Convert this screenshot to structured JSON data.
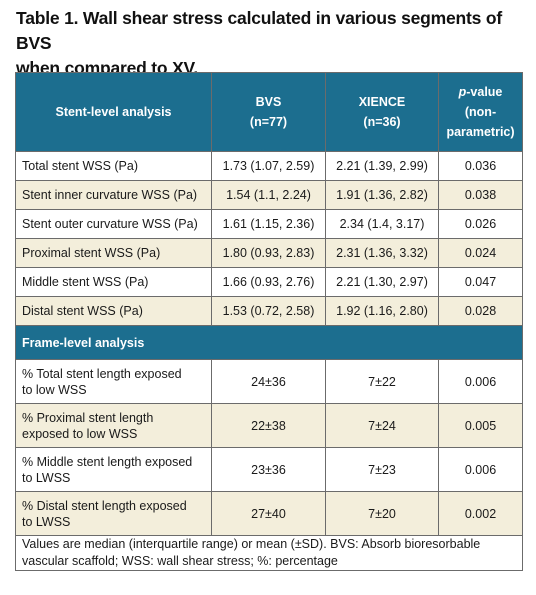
{
  "caption": {
    "line1": "Table 1. Wall shear stress calculated in various segments of BVS",
    "line2": "when compared to XV."
  },
  "header": {
    "col1": "Stent-level analysis",
    "col2_line1": "BVS",
    "col2_line2": "(n=77)",
    "col3_line1": "XIENCE",
    "col3_line2": "(n=36)",
    "col4_p": "p",
    "col4_rest": "-value",
    "col4_line2": "(non-",
    "col4_line3": "parametric)"
  },
  "stent_rows": [
    {
      "label": "Total stent WSS (Pa)",
      "bvs": "1.73 (1.07, 2.59)",
      "xience": "2.21 (1.39, 2.99)",
      "p": "0.036"
    },
    {
      "label": "Stent inner curvature WSS (Pa)",
      "bvs": "1.54 (1.1, 2.24)",
      "xience": "1.91 (1.36, 2.82)",
      "p": "0.038"
    },
    {
      "label": "Stent outer curvature WSS (Pa)",
      "bvs": "1.61 (1.15, 2.36)",
      "xience": "2.34 (1.4, 3.17)",
      "p": "0.026"
    },
    {
      "label": "Proximal stent WSS (Pa)",
      "bvs": "1.80 (0.93, 2.83)",
      "xience": "2.31 (1.36, 3.32)",
      "p": "0.024"
    },
    {
      "label": "Middle stent WSS (Pa)",
      "bvs": "1.66 (0.93, 2.76)",
      "xience": "2.21 (1.30, 2.97)",
      "p": "0.047"
    },
    {
      "label": "Distal stent WSS (Pa)",
      "bvs": "1.53 (0.72, 2.58)",
      "xience": "1.92 (1.16, 2.80)",
      "p": "0.028"
    }
  ],
  "frame_section": "Frame-level analysis",
  "frame_rows": [
    {
      "label1": "% Total stent length exposed",
      "label2": "to low WSS",
      "bvs": "24±36",
      "xience": "7±22",
      "p": "0.006"
    },
    {
      "label1": "% Proximal stent length",
      "label2": "exposed to low WSS",
      "bvs": "22±38",
      "xience": "7±24",
      "p": "0.005"
    },
    {
      "label1": "% Middle stent length exposed",
      "label2": "to LWSS",
      "bvs": "23±36",
      "xience": "7±23",
      "p": "0.006"
    },
    {
      "label1": "% Distal stent length exposed",
      "label2": "to LWSS",
      "bvs": "27±40",
      "xience": "7±20",
      "p": "0.002"
    }
  ],
  "footnote": {
    "line1": "Values are median (interquartile range) or mean (±SD). BVS: Absorb bioresorbable",
    "line2": "vascular scaffold; WSS: wall shear stress; %: percentage"
  }
}
